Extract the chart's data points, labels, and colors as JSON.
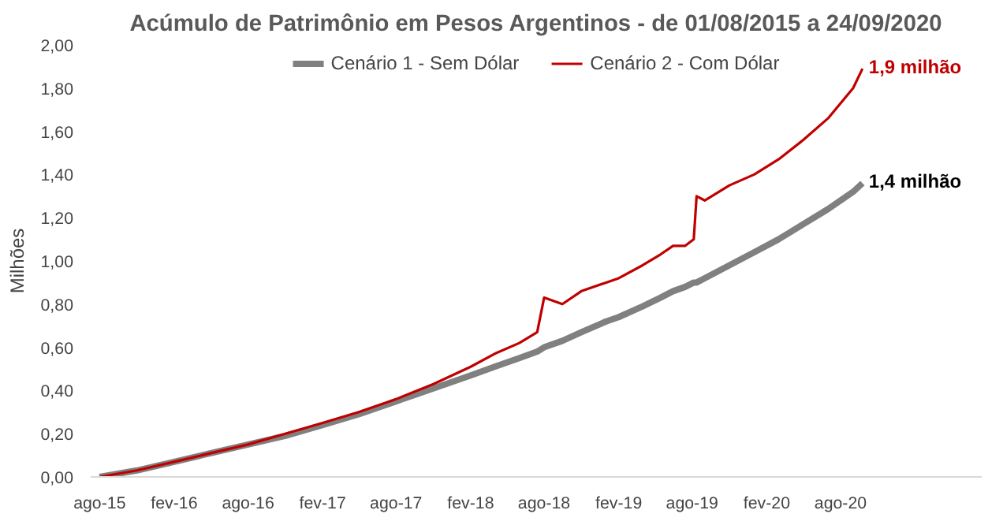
{
  "chart_data": {
    "type": "line",
    "title": "Acúmulo de Patrimônio em Pesos Argentinos - de 01/08/2015 a 24/09/2020",
    "ylabel": "Milhões",
    "xlim": [
      "2015-07-10",
      "2021-07-15"
    ],
    "ylim": [
      0,
      2
    ],
    "xticks": [
      {
        "value": "2015-08-01",
        "label": "ago-15"
      },
      {
        "value": "2016-02-01",
        "label": "fev-16"
      },
      {
        "value": "2016-08-01",
        "label": "ago-16"
      },
      {
        "value": "2017-02-01",
        "label": "fev-17"
      },
      {
        "value": "2017-08-01",
        "label": "ago-17"
      },
      {
        "value": "2018-02-01",
        "label": "fev-18"
      },
      {
        "value": "2018-08-01",
        "label": "ago-18"
      },
      {
        "value": "2019-02-01",
        "label": "fev-19"
      },
      {
        "value": "2019-08-01",
        "label": "ago-19"
      },
      {
        "value": "2020-02-01",
        "label": "fev-20"
      },
      {
        "value": "2020-08-01",
        "label": "ago-20"
      }
    ],
    "yticks": [
      {
        "value": 0,
        "label": "0,00"
      },
      {
        "value": 0.2,
        "label": "0,20"
      },
      {
        "value": 0.4,
        "label": "0,40"
      },
      {
        "value": 0.6,
        "label": "0,60"
      },
      {
        "value": 0.8,
        "label": "0,80"
      },
      {
        "value": 1.0,
        "label": "1,00"
      },
      {
        "value": 1.2,
        "label": "1,20"
      },
      {
        "value": 1.4,
        "label": "1,40"
      },
      {
        "value": 1.6,
        "label": "1,60"
      },
      {
        "value": 1.8,
        "label": "1,80"
      },
      {
        "value": 2.0,
        "label": "2,00"
      }
    ],
    "x": [
      "2015-08-01",
      "2015-11-01",
      "2016-02-01",
      "2016-05-01",
      "2016-08-01",
      "2016-11-01",
      "2017-02-01",
      "2017-05-01",
      "2017-08-01",
      "2017-11-01",
      "2018-02-01",
      "2018-04-01",
      "2018-06-01",
      "2018-07-15",
      "2018-08-01",
      "2018-09-15",
      "2018-11-01",
      "2019-01-01",
      "2019-02-01",
      "2019-04-01",
      "2019-05-15",
      "2019-06-15",
      "2019-07-15",
      "2019-08-05",
      "2019-08-12",
      "2019-09-01",
      "2019-11-01",
      "2020-01-01",
      "2020-03-01",
      "2020-05-01",
      "2020-07-01",
      "2020-09-01",
      "2020-09-24"
    ],
    "series": [
      {
        "name": "Cenário 1 - Sem Dólar",
        "color": "#808080",
        "values": [
          0.0,
          0.03,
          0.07,
          0.11,
          0.15,
          0.19,
          0.24,
          0.29,
          0.35,
          0.41,
          0.47,
          0.51,
          0.55,
          0.58,
          0.6,
          0.63,
          0.67,
          0.72,
          0.74,
          0.79,
          0.83,
          0.86,
          0.88,
          0.9,
          0.9,
          0.92,
          0.98,
          1.04,
          1.1,
          1.17,
          1.24,
          1.32,
          1.36
        ]
      },
      {
        "name": "Cenário 2 - Com Dólar",
        "color": "#c00000",
        "values": [
          0.0,
          0.03,
          0.07,
          0.11,
          0.15,
          0.2,
          0.25,
          0.3,
          0.36,
          0.43,
          0.51,
          0.57,
          0.62,
          0.67,
          0.83,
          0.8,
          0.86,
          0.9,
          0.92,
          0.98,
          1.03,
          1.07,
          1.07,
          1.1,
          1.3,
          1.28,
          1.35,
          1.4,
          1.47,
          1.56,
          1.66,
          1.8,
          1.89
        ]
      }
    ],
    "annotations": [
      {
        "text": "1,4 milhão",
        "x": "2020-09-24",
        "y": 1.36
      },
      {
        "text": "1,9 milhão",
        "x": "2020-09-24",
        "y": 1.89
      }
    ],
    "legend": "top",
    "grid": false,
    "marker": "none",
    "line_style": "solid"
  }
}
